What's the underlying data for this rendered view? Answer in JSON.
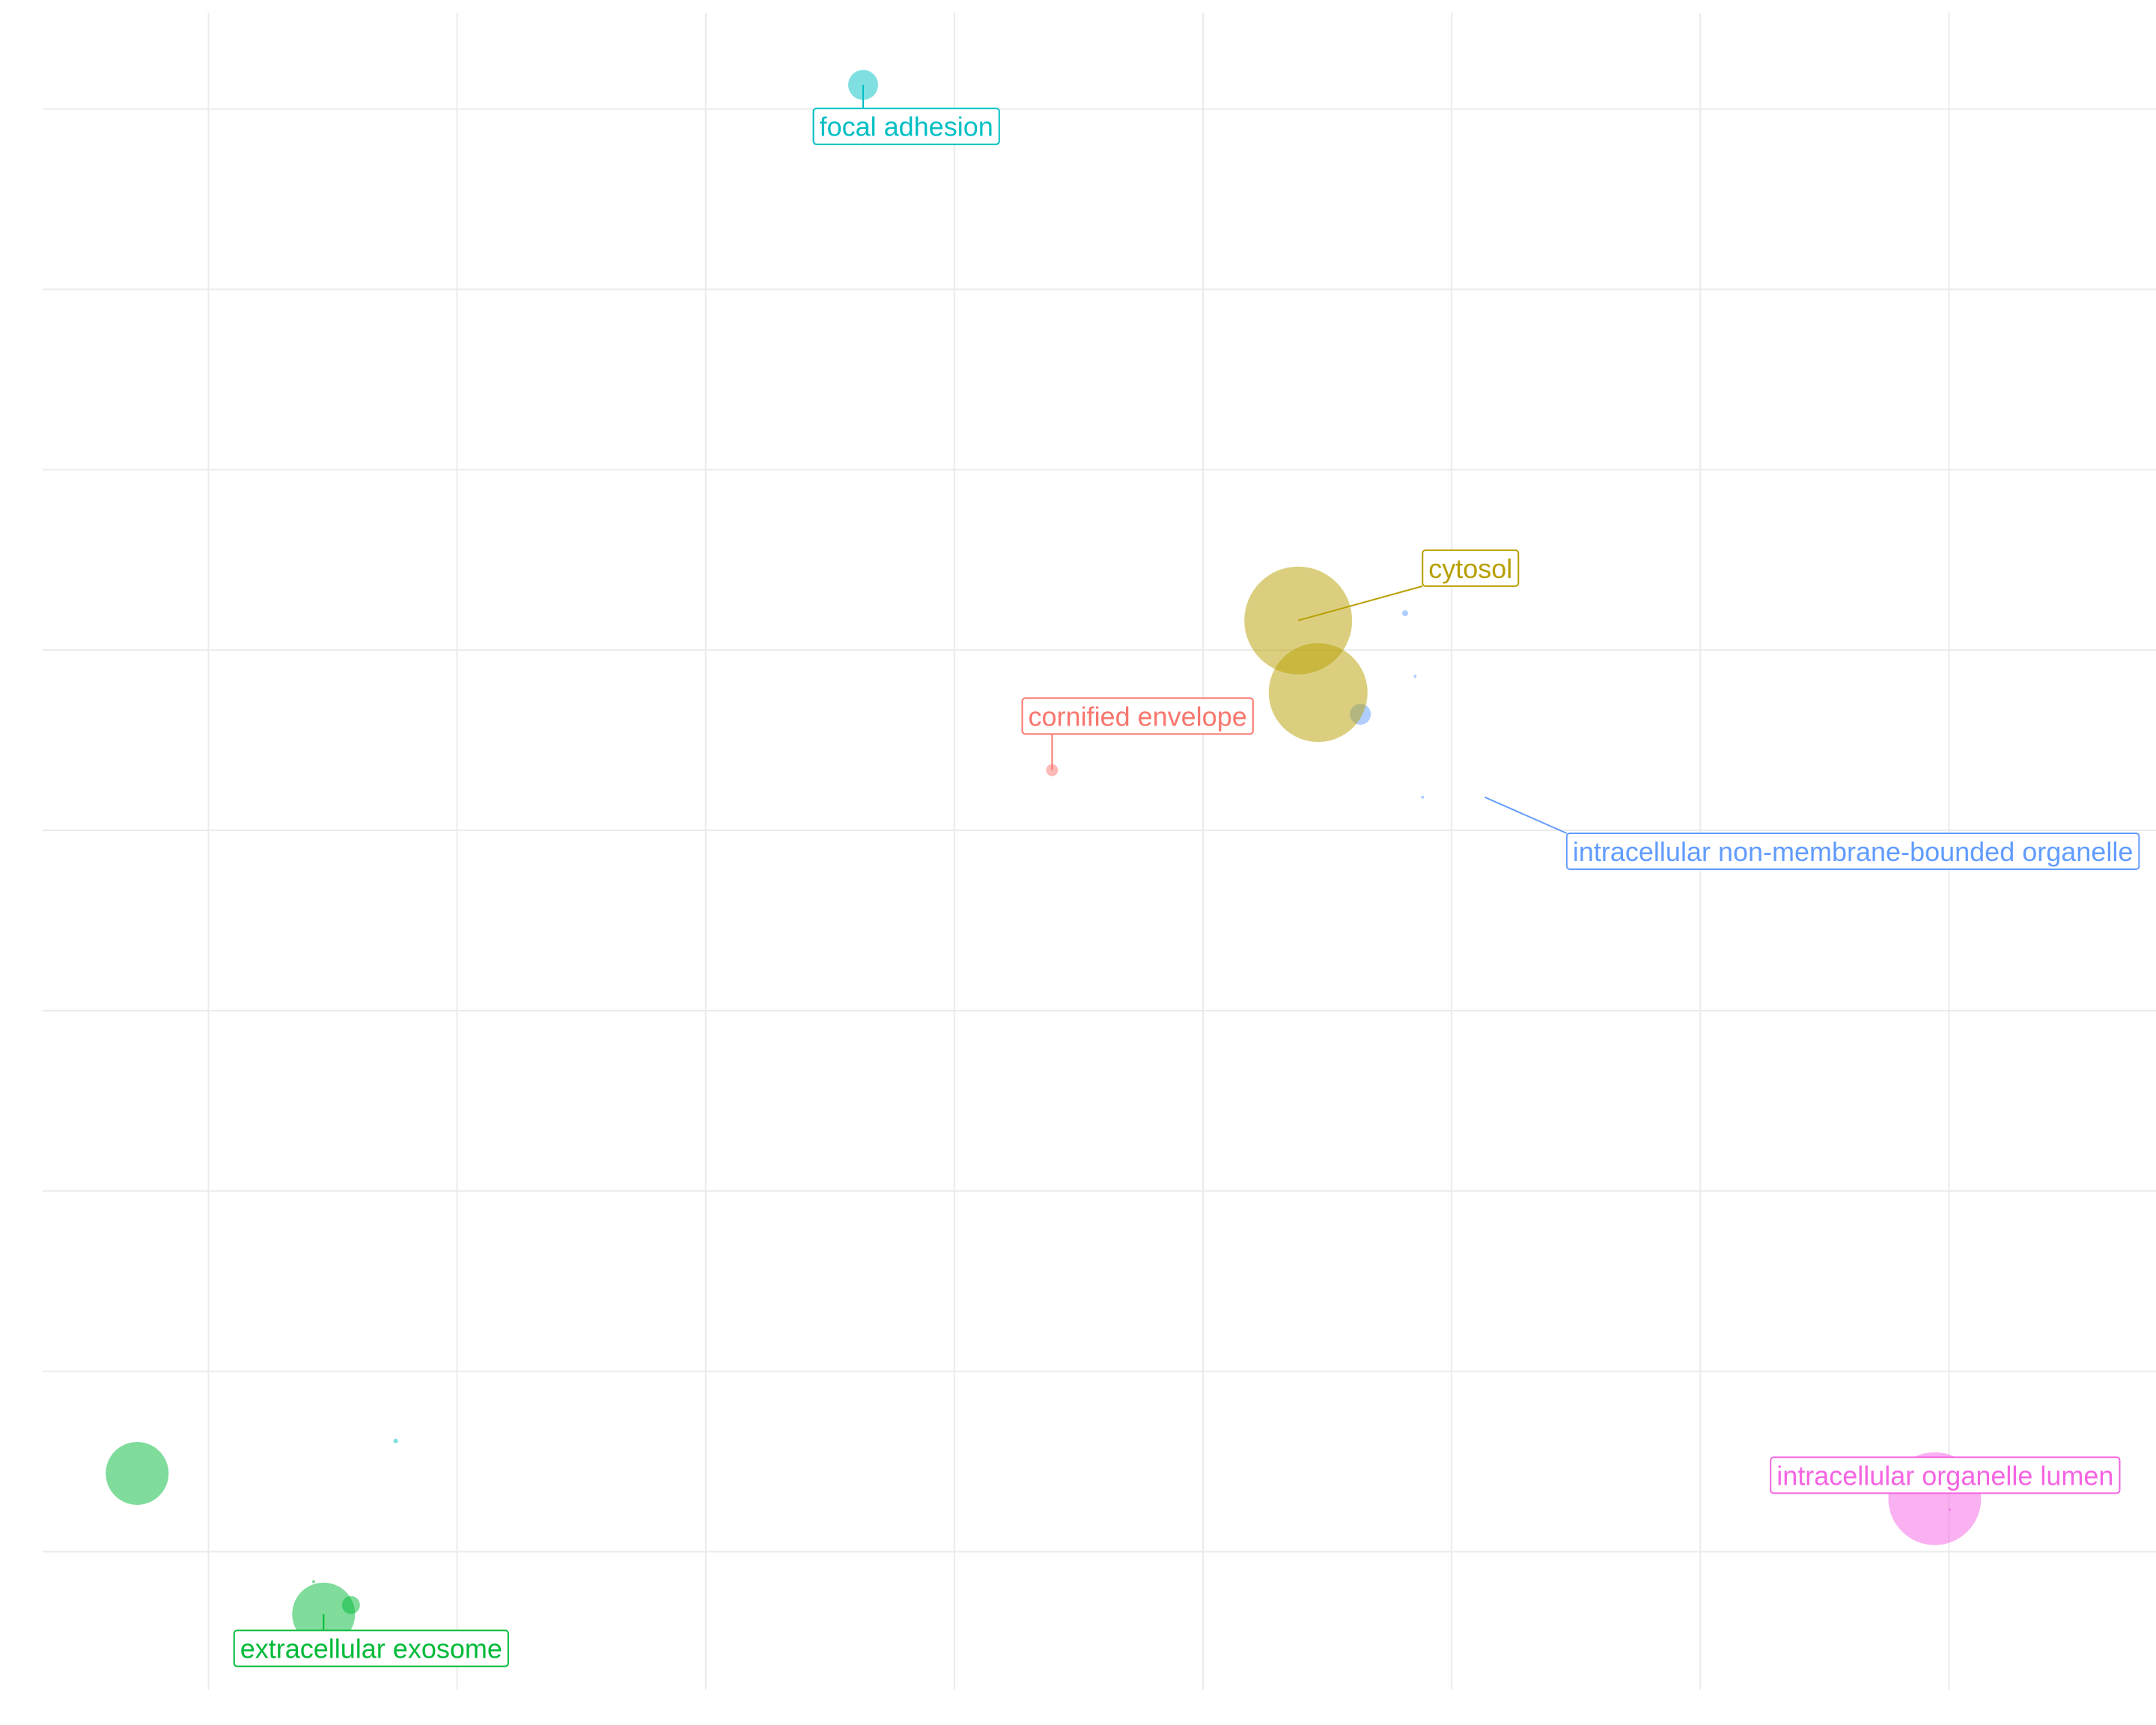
{
  "chart_data": {
    "type": "scatter",
    "title": "",
    "xlabel": "",
    "ylabel": "",
    "xlim": [
      0,
      8.5
    ],
    "ylim": [
      0,
      9.3
    ],
    "x_gridlines": [
      0.667,
      1.667,
      2.667,
      3.667,
      4.667,
      5.667,
      6.667,
      7.667
    ],
    "y_gridlines": [
      0.766,
      1.766,
      2.766,
      3.766,
      4.766,
      5.766,
      6.766,
      7.766,
      8.766
    ],
    "grid": true,
    "legend": "none",
    "points": [
      {
        "x": 3.3,
        "y": 8.9,
        "size": 20,
        "color": "#00bfc4",
        "category": "focal adhesion"
      },
      {
        "x": 1.42,
        "y": 1.38,
        "size": 3,
        "color": "#00bfc4",
        "category": "focal adhesion"
      },
      {
        "x": 5.48,
        "y": 5.97,
        "size": 4,
        "color": "#619cff",
        "category": "intracellular non-membrane-bounded organelle"
      },
      {
        "x": 5.52,
        "y": 5.62,
        "size": 2,
        "color": "#619cff",
        "category": "intracellular non-membrane-bounded organelle"
      },
      {
        "x": 5.3,
        "y": 5.41,
        "size": 14,
        "color": "#619cff",
        "category": "intracellular non-membrane-bounded organelle"
      },
      {
        "x": 5.55,
        "y": 4.95,
        "size": 2,
        "color": "#619cff",
        "category": "intracellular non-membrane-bounded organelle"
      },
      {
        "x": 5.05,
        "y": 5.93,
        "size": 72,
        "color": "#b79f00",
        "category": "cytosol"
      },
      {
        "x": 5.13,
        "y": 5.53,
        "size": 66,
        "color": "#b79f00",
        "category": "cytosol"
      },
      {
        "x": 4.06,
        "y": 5.1,
        "size": 8,
        "color": "#f8766d",
        "category": "cornified envelope"
      },
      {
        "x": 0.38,
        "y": 1.2,
        "size": 42,
        "color": "#00ba38",
        "category": "extracellular exosome"
      },
      {
        "x": 1.13,
        "y": 0.42,
        "size": 42,
        "color": "#00ba38",
        "category": "extracellular exosome"
      },
      {
        "x": 1.24,
        "y": 0.47,
        "size": 12,
        "color": "#00ba38",
        "category": "extracellular exosome"
      },
      {
        "x": 1.09,
        "y": 0.6,
        "size": 2,
        "color": "#00ba38",
        "category": "extracellular exosome"
      },
      {
        "x": 7.61,
        "y": 1.06,
        "size": 62,
        "color": "#f564e3",
        "category": "intracellular organelle lumen"
      },
      {
        "x": 7.67,
        "y": 1.0,
        "size": 2,
        "color": "#f564e3",
        "category": "intracellular organelle lumen"
      },
      {
        "x": 8.12,
        "y": 1.14,
        "size": 2,
        "color": "#f564e3",
        "category": "intracellular organelle lumen"
      }
    ],
    "annotations": [
      {
        "text": "focal adhesion",
        "color": "#00bfc4",
        "x": 3.1,
        "y": 8.67,
        "point_x": 3.3,
        "point_y": 8.9
      },
      {
        "text": "cytosol",
        "color": "#b79f00",
        "x": 5.55,
        "y": 6.22,
        "point_x": 5.05,
        "point_y": 5.93
      },
      {
        "text": "cornified envelope",
        "color": "#f8766d",
        "x": 3.94,
        "y": 5.4,
        "point_x": 4.06,
        "point_y": 5.1
      },
      {
        "text": "intracellular non-membrane-bounded organelle",
        "color": "#619cff",
        "x": 6.13,
        "y": 4.65,
        "point_x": 5.8,
        "point_y": 4.95
      },
      {
        "text": "intracellular organelle lumen",
        "color": "#f564e3",
        "x": 6.95,
        "y": 1.19,
        "point_x": 7.86,
        "point_y": 1.21
      },
      {
        "text": "extracellular exosome",
        "color": "#00ba38",
        "x": 0.77,
        "y": 0.23,
        "point_x": 1.13,
        "point_y": 0.42
      }
    ]
  }
}
